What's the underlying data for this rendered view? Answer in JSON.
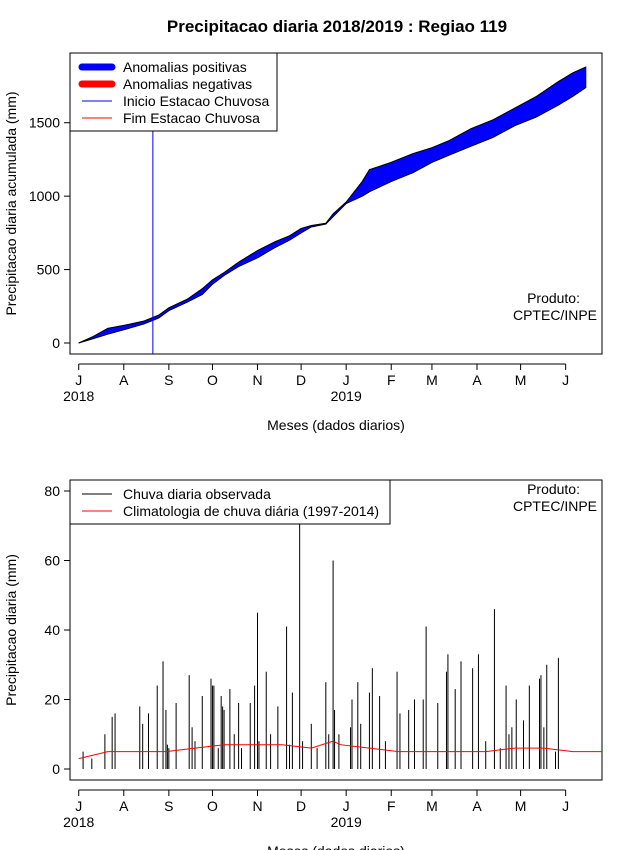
{
  "title": "Precipitacao diaria 2018/2019 : Regiao 119",
  "chart_data": [
    {
      "type": "area",
      "name": "accumulated-precipitation",
      "ylabel": "Precipitacao diaria acumulada (mm)",
      "xlabel": "Meses (dados diarios)",
      "ylim": [
        0,
        1900
      ],
      "yticks": [
        0,
        500,
        1000,
        1500
      ],
      "xlim_days": [
        -6,
        360
      ],
      "month_ticks": [
        {
          "day": 0,
          "label": "J"
        },
        {
          "day": 31,
          "label": "A"
        },
        {
          "day": 62,
          "label": "S"
        },
        {
          "day": 92,
          "label": "O"
        },
        {
          "day": 123,
          "label": "N"
        },
        {
          "day": 153,
          "label": "D"
        },
        {
          "day": 184,
          "label": "J"
        },
        {
          "day": 215,
          "label": "F"
        },
        {
          "day": 243,
          "label": "M"
        },
        {
          "day": 274,
          "label": "A"
        },
        {
          "day": 304,
          "label": "M"
        },
        {
          "day": 335,
          "label": "J"
        }
      ],
      "year_labels": [
        {
          "day": 0,
          "label": "2018"
        },
        {
          "day": 184,
          "label": "2019"
        }
      ],
      "observed_accumulated": {
        "days": [
          0,
          10,
          20,
          31,
          45,
          55,
          62,
          75,
          85,
          92,
          100,
          110,
          123,
          135,
          145,
          153,
          160,
          170,
          175,
          184,
          195,
          200,
          215,
          230,
          243,
          255,
          270,
          285,
          300,
          315,
          330,
          340,
          349
        ],
        "values": [
          0,
          45,
          100,
          120,
          150,
          190,
          240,
          300,
          370,
          430,
          480,
          550,
          630,
          690,
          730,
          780,
          800,
          815,
          880,
          960,
          1100,
          1180,
          1230,
          1290,
          1330,
          1380,
          1460,
          1520,
          1600,
          1680,
          1780,
          1840,
          1880
        ]
      },
      "climatology_accumulated": {
        "days": [
          0,
          10,
          20,
          31,
          45,
          55,
          62,
          75,
          85,
          92,
          100,
          110,
          123,
          135,
          145,
          153,
          160,
          170,
          175,
          184,
          195,
          200,
          215,
          230,
          243,
          255,
          270,
          285,
          300,
          315,
          330,
          340,
          349
        ],
        "values": [
          0,
          30,
          60,
          90,
          130,
          170,
          220,
          280,
          330,
          400,
          460,
          520,
          580,
          650,
          700,
          750,
          790,
          810,
          860,
          950,
          1000,
          1030,
          1100,
          1160,
          1230,
          1280,
          1340,
          1400,
          1480,
          1540,
          1620,
          1680,
          1740
        ]
      },
      "rainy_season_start_day": 51,
      "legend": [
        {
          "label": "Anomalias positivas",
          "color": "#0000FF",
          "kind": "thick"
        },
        {
          "label": "Anomalias negativas",
          "color": "#FF0000",
          "kind": "thick"
        },
        {
          "label": "Inicio Estacao Chuvosa",
          "color": "#0000FF",
          "kind": "thin"
        },
        {
          "label": "Fim Estacao Chuvosa",
          "color": "#FF0000",
          "kind": "thin"
        }
      ],
      "credit": [
        "Produto:",
        "CPTEC/INPE"
      ]
    },
    {
      "type": "line",
      "name": "daily-precipitation",
      "ylabel": "Precipitacao diaria (mm)",
      "xlabel": "Meses (dados diarios)",
      "ylim": [
        0,
        80
      ],
      "yticks": [
        0,
        20,
        40,
        60,
        80
      ],
      "xlim_days": [
        -6,
        360
      ],
      "month_ticks": [
        {
          "day": 0,
          "label": "J"
        },
        {
          "day": 31,
          "label": "A"
        },
        {
          "day": 62,
          "label": "S"
        },
        {
          "day": 92,
          "label": "O"
        },
        {
          "day": 123,
          "label": "N"
        },
        {
          "day": 153,
          "label": "D"
        },
        {
          "day": 184,
          "label": "J"
        },
        {
          "day": 215,
          "label": "F"
        },
        {
          "day": 243,
          "label": "M"
        },
        {
          "day": 274,
          "label": "A"
        },
        {
          "day": 304,
          "label": "M"
        },
        {
          "day": 335,
          "label": "J"
        }
      ],
      "year_labels": [
        {
          "day": 0,
          "label": "2018"
        },
        {
          "day": 184,
          "label": "2019"
        }
      ],
      "observed_daily": {
        "days": [
          3,
          9,
          18,
          23,
          25,
          42,
          44,
          48,
          54,
          58,
          60,
          61,
          62,
          67,
          76,
          78,
          80,
          85,
          91,
          92,
          93,
          96,
          98,
          99,
          100,
          104,
          107,
          110,
          112,
          118,
          121,
          123,
          124,
          129,
          132,
          137,
          143,
          145,
          147,
          152,
          154,
          160,
          164,
          170,
          172,
          175,
          176,
          179,
          187,
          188,
          192,
          194,
          200,
          202,
          207,
          211,
          219,
          221,
          227,
          231,
          237,
          239,
          247,
          253,
          254,
          259,
          263,
          271,
          275,
          280,
          286,
          290,
          294,
          296,
          298,
          301,
          306,
          310,
          317,
          318,
          320,
          322,
          328,
          330
        ],
        "values": [
          5,
          3,
          10,
          15,
          16,
          18,
          13,
          16,
          24,
          31,
          17,
          7,
          6,
          19,
          27,
          12,
          8,
          21,
          26,
          24,
          24,
          6,
          21,
          18,
          17,
          23,
          10,
          19,
          6,
          19,
          24,
          45,
          8,
          28,
          10,
          18,
          41,
          7,
          22,
          79,
          8,
          13,
          6,
          25,
          10,
          60,
          17,
          10,
          12,
          20,
          25,
          13,
          22,
          29,
          21,
          8,
          28,
          16,
          17,
          20,
          20,
          41,
          19,
          28,
          33,
          23,
          31,
          29,
          33,
          8,
          46,
          6,
          24,
          10,
          12,
          20,
          14,
          24,
          26,
          27,
          12,
          30,
          5,
          32
        ]
      },
      "climatology_daily": {
        "days": [
          0,
          20,
          40,
          60,
          80,
          100,
          120,
          140,
          160,
          175,
          180,
          200,
          220,
          240,
          260,
          280,
          300,
          320,
          340,
          360
        ],
        "values": [
          3,
          5,
          5,
          5,
          6,
          7,
          7,
          7,
          6,
          8,
          7,
          6,
          5,
          5,
          5,
          5,
          6,
          6,
          5,
          5
        ]
      },
      "legend": [
        {
          "label": "Chuva diaria observada",
          "color": "#000000",
          "kind": "thin"
        },
        {
          "label": "Climatologia de chuva diária (1997-2014)",
          "color": "#FF0000",
          "kind": "thin"
        }
      ],
      "credit": [
        "Produto:",
        "CPTEC/INPE"
      ]
    }
  ]
}
